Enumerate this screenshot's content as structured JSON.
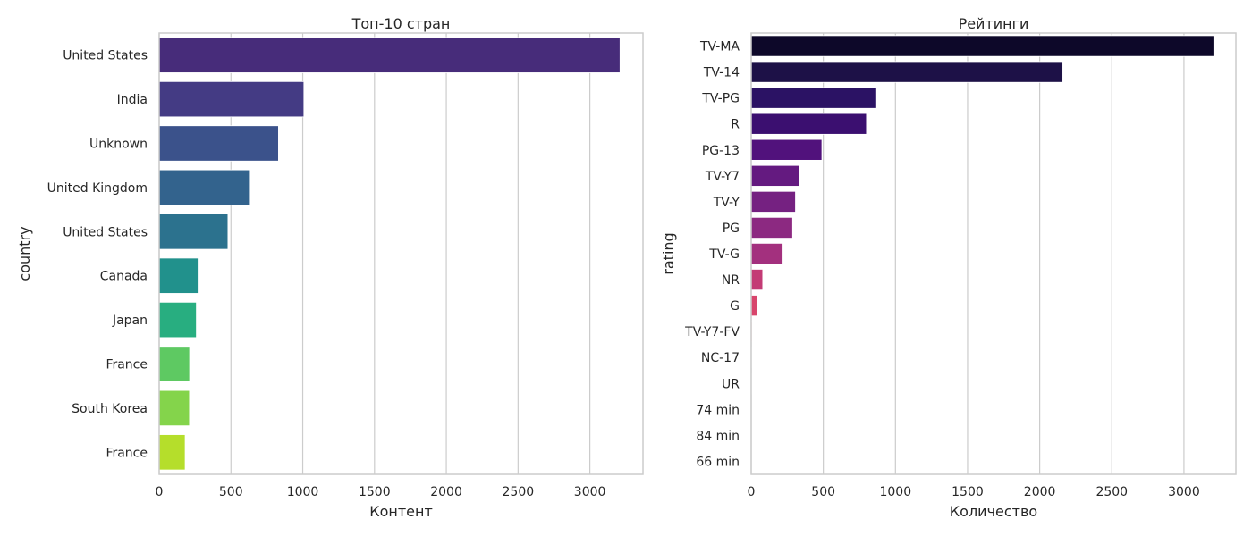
{
  "chart_data": [
    {
      "type": "bar",
      "orientation": "horizontal",
      "title": "Топ-10 стран",
      "xlabel": "Контент",
      "ylabel": "country",
      "xlim": [
        0,
        3370
      ],
      "xticks": [
        0,
        500,
        1000,
        1500,
        2000,
        2500,
        3000
      ],
      "grid": true,
      "categories": [
        "United States",
        "India",
        "Unknown",
        "United Kingdom",
        "United States",
        "Canada",
        "Japan",
        "France",
        "South Korea",
        "France"
      ],
      "values": [
        3210,
        1008,
        831,
        628,
        479,
        271,
        259,
        212,
        211,
        181
      ],
      "colors": [
        "#472c7a",
        "#443b84",
        "#3b528b",
        "#33638d",
        "#2c728e",
        "#21918c",
        "#28ae80",
        "#5ec962",
        "#84d44b",
        "#b5de2b"
      ]
    },
    {
      "type": "bar",
      "orientation": "horizontal",
      "title": "Рейтинги",
      "xlabel": "Количество",
      "ylabel": "rating",
      "xlim": [
        0,
        3360
      ],
      "xticks": [
        0,
        500,
        1000,
        1500,
        2000,
        2500,
        3000
      ],
      "grid": true,
      "categories": [
        "TV-MA",
        "TV-14",
        "TV-PG",
        "R",
        "PG-13",
        "TV-Y7",
        "TV-Y",
        "PG",
        "TV-G",
        "NR",
        "G",
        "TV-Y7-FV",
        "NC-17",
        "UR",
        "74 min",
        "84 min",
        "66 min"
      ],
      "values": [
        3207,
        2160,
        863,
        799,
        490,
        334,
        307,
        287,
        220,
        80,
        41,
        6,
        3,
        3,
        1,
        1,
        1
      ],
      "colors": [
        "#0d0829",
        "#1d1147",
        "#2b1264",
        "#3b0f70",
        "#51127c",
        "#641a80",
        "#752181",
        "#8c2981",
        "#a3307e",
        "#c33b75",
        "#d8456c",
        "#e85d65",
        "#f1605d",
        "#f9795d",
        "#fd9a6a",
        "#fec287",
        "#fddea0"
      ]
    }
  ]
}
